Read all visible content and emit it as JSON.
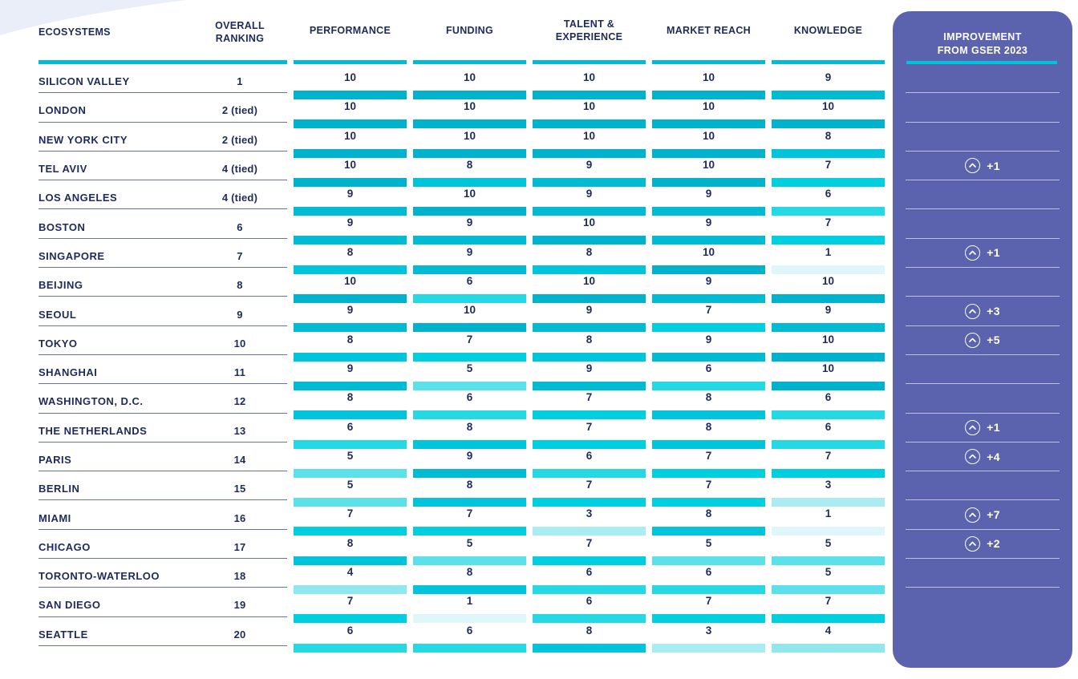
{
  "colors": {
    "accent_cyan": "#00bad6",
    "text_navy": "#1e2a5c",
    "row_separator": "#6c7590",
    "panel_bg": "#5b63ae",
    "panel_rule": "#00c2da",
    "deco_wedge": "#e9eef8"
  },
  "table": {
    "headers": {
      "ecosystems": "ECOSYSTEMS",
      "overall_ranking": "OVERALL RANKING",
      "performance": "PERFORMANCE",
      "funding": "FUNDING",
      "talent_experience": "TALENT & EXPERIENCE",
      "market_reach": "MARKET REACH",
      "knowledge": "KNOWLEDGE"
    }
  },
  "panel": {
    "title_line1": "IMPROVEMENT",
    "title_line2": "FROM GSER 2023",
    "up_icon": "chevron-up-circle"
  },
  "chart_data": {
    "type": "table",
    "title": "Top 20 startup ecosystems with factor scores and improvement from GSER 2023",
    "columns": [
      "PERFORMANCE",
      "FUNDING",
      "TALENT & EXPERIENCE",
      "MARKET REACH",
      "KNOWLEDGE"
    ],
    "score_range": [
      1,
      10
    ],
    "color_scale": {
      "1": "#dff6fa",
      "3": "#a9edf3",
      "4": "#90e8ef",
      "5": "#5ce0ea",
      "6": "#24d8e4",
      "7": "#00cfe0",
      "8": "#00c4d9",
      "9": "#00bbd2",
      "10": "#00b2cc"
    },
    "rows": [
      {
        "ecosystem": "SILICON VALLEY",
        "overall_ranking": "1",
        "scores": [
          10,
          10,
          10,
          10,
          9
        ],
        "improvement_from_gser_2023": null
      },
      {
        "ecosystem": "LONDON",
        "overall_ranking": "2 (tied)",
        "scores": [
          10,
          10,
          10,
          10,
          10
        ],
        "improvement_from_gser_2023": null
      },
      {
        "ecosystem": "NEW YORK CITY",
        "overall_ranking": "2 (tied)",
        "scores": [
          10,
          10,
          10,
          10,
          8
        ],
        "improvement_from_gser_2023": null
      },
      {
        "ecosystem": "TEL AVIV",
        "overall_ranking": "4 (tied)",
        "scores": [
          10,
          8,
          9,
          10,
          7
        ],
        "improvement_from_gser_2023": "+1"
      },
      {
        "ecosystem": "LOS ANGELES",
        "overall_ranking": "4 (tied)",
        "scores": [
          9,
          10,
          9,
          9,
          6
        ],
        "improvement_from_gser_2023": null
      },
      {
        "ecosystem": "BOSTON",
        "overall_ranking": "6",
        "scores": [
          9,
          9,
          10,
          9,
          7
        ],
        "improvement_from_gser_2023": null
      },
      {
        "ecosystem": "SINGAPORE",
        "overall_ranking": "7",
        "scores": [
          8,
          9,
          8,
          10,
          1
        ],
        "improvement_from_gser_2023": "+1"
      },
      {
        "ecosystem": "BEIJING",
        "overall_ranking": "8",
        "scores": [
          10,
          6,
          10,
          9,
          10
        ],
        "improvement_from_gser_2023": null
      },
      {
        "ecosystem": "SEOUL",
        "overall_ranking": "9",
        "scores": [
          9,
          10,
          9,
          7,
          9
        ],
        "improvement_from_gser_2023": "+3"
      },
      {
        "ecosystem": "TOKYO",
        "overall_ranking": "10",
        "scores": [
          8,
          7,
          8,
          9,
          10
        ],
        "improvement_from_gser_2023": "+5"
      },
      {
        "ecosystem": "SHANGHAI",
        "overall_ranking": "11",
        "scores": [
          9,
          5,
          9,
          6,
          10
        ],
        "improvement_from_gser_2023": null
      },
      {
        "ecosystem": "WASHINGTON, D.C.",
        "overall_ranking": "12",
        "scores": [
          8,
          6,
          7,
          8,
          6
        ],
        "improvement_from_gser_2023": null
      },
      {
        "ecosystem": "THE NETHERLANDS",
        "overall_ranking": "13",
        "scores": [
          6,
          8,
          7,
          8,
          6
        ],
        "improvement_from_gser_2023": "+1"
      },
      {
        "ecosystem": "PARIS",
        "overall_ranking": "14",
        "scores": [
          5,
          9,
          6,
          7,
          7
        ],
        "improvement_from_gser_2023": "+4"
      },
      {
        "ecosystem": "BERLIN",
        "overall_ranking": "15",
        "scores": [
          5,
          8,
          7,
          7,
          3
        ],
        "improvement_from_gser_2023": null
      },
      {
        "ecosystem": "MIAMI",
        "overall_ranking": "16",
        "scores": [
          7,
          7,
          3,
          8,
          1
        ],
        "improvement_from_gser_2023": "+7"
      },
      {
        "ecosystem": "CHICAGO",
        "overall_ranking": "17",
        "scores": [
          8,
          5,
          7,
          5,
          5
        ],
        "improvement_from_gser_2023": "+2"
      },
      {
        "ecosystem": "TORONTO-WATERLOO",
        "overall_ranking": "18",
        "scores": [
          4,
          8,
          6,
          6,
          5
        ],
        "improvement_from_gser_2023": null
      },
      {
        "ecosystem": "SAN DIEGO",
        "overall_ranking": "19",
        "scores": [
          7,
          1,
          6,
          7,
          7
        ],
        "improvement_from_gser_2023": null
      },
      {
        "ecosystem": "SEATTLE",
        "overall_ranking": "20",
        "scores": [
          6,
          6,
          8,
          3,
          4
        ],
        "improvement_from_gser_2023": null
      }
    ],
    "panel_rows_without_separator_line": [
      "SAN DIEGO",
      "SEATTLE"
    ],
    "legend_position": "none",
    "grid": "row-separators-under-first-two-columns-only"
  }
}
